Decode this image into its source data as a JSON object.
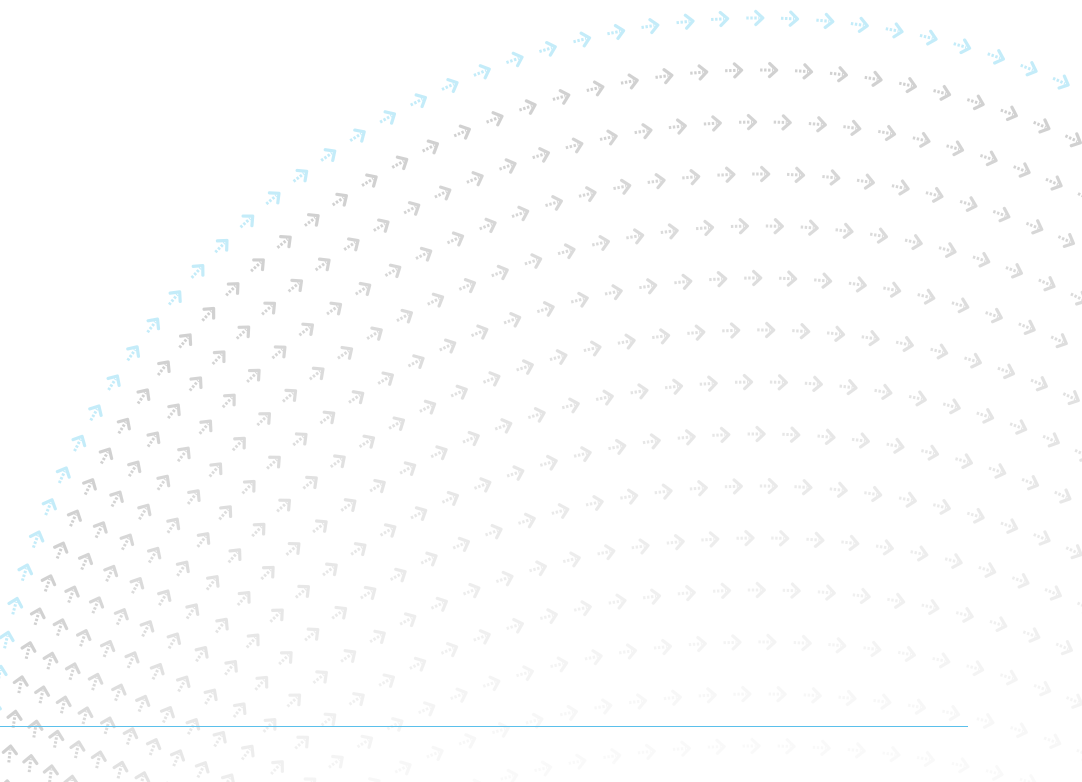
{
  "decoration": {
    "pattern_icon": "dotted-chevron-arrow-icon",
    "colors": {
      "accent": "#c4ecf9",
      "arrow": "#cfcfcf",
      "rule": "#5bc0eb",
      "background": "#ffffff"
    }
  }
}
